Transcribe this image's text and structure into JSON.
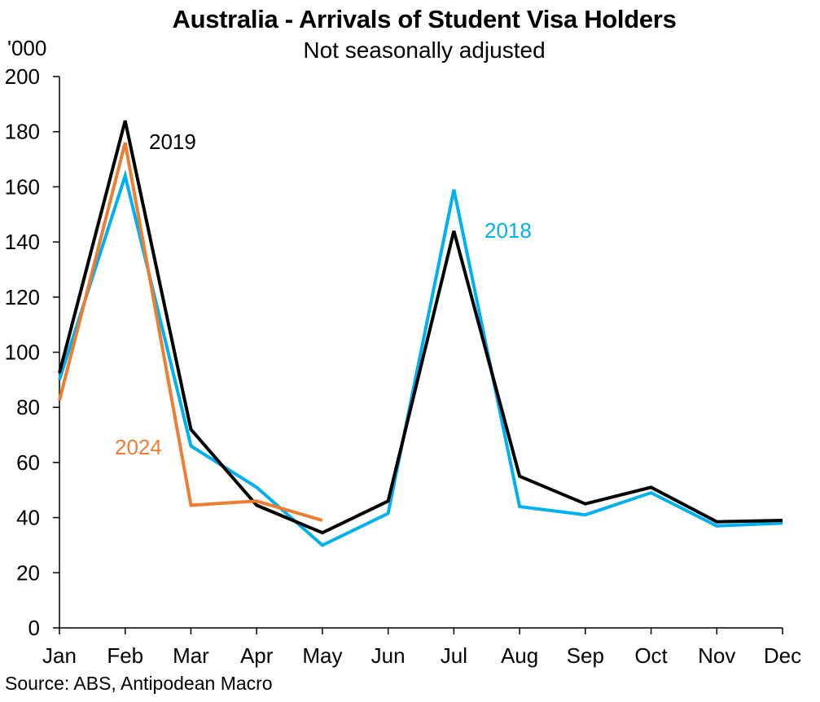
{
  "header": {
    "title": "Australia - Arrivals of Student Visa Holders",
    "subtitle": "Not seasonally adjusted",
    "unit_label": "'000"
  },
  "footer": {
    "source": "Source: ABS, Antipodean Macro"
  },
  "chart_data": {
    "type": "line",
    "title": "Australia - Arrivals of Student Visa Holders",
    "subtitle": "Not seasonally adjusted",
    "xlabel": "",
    "ylabel": "'000",
    "ylim": [
      0,
      200
    ],
    "yticks": [
      0,
      20,
      40,
      60,
      80,
      100,
      120,
      140,
      160,
      180,
      200
    ],
    "grid": false,
    "legend": "inline labels",
    "categories": [
      "Jan",
      "Feb",
      "Mar",
      "Apr",
      "May",
      "Jun",
      "Jul",
      "Aug",
      "Sep",
      "Oct",
      "Nov",
      "Dec"
    ],
    "series": [
      {
        "name": "2018",
        "color": "#00B0F0",
        "values": [
          90,
          164,
          66,
          51,
          30,
          41.5,
          159,
          44,
          41,
          49,
          37,
          38
        ],
        "label_pos": {
          "x": 595,
          "y": 292
        }
      },
      {
        "name": "2019",
        "color": "#000000",
        "values": [
          92.5,
          184,
          72,
          44.5,
          34.5,
          46,
          144,
          55,
          45,
          51,
          38.5,
          39
        ],
        "label_pos": {
          "x": 183,
          "y": 183
        }
      },
      {
        "name": "2024",
        "color": "#ED7D31",
        "values": [
          82.5,
          176,
          44.5,
          46,
          39
        ],
        "label_pos": {
          "x": 141,
          "y": 558
        }
      }
    ],
    "source": "Source: ABS, Antipodean Macro"
  }
}
